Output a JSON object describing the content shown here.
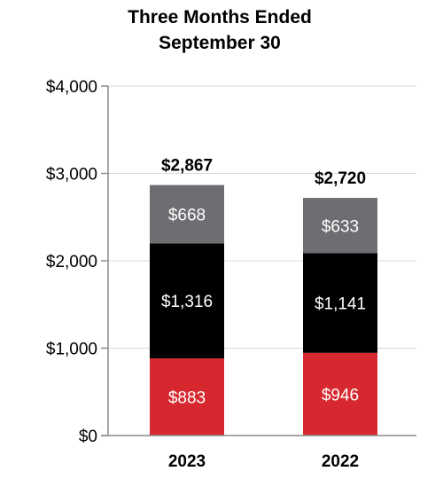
{
  "chart_data": {
    "type": "bar",
    "stacked": true,
    "title": "Three Months Ended",
    "subtitle": "September 30",
    "categories": [
      "2023",
      "2022"
    ],
    "series": [
      {
        "values": [
          883,
          946
        ],
        "labels": [
          "$883",
          "$946"
        ],
        "color": "#d7282f"
      },
      {
        "values": [
          1316,
          1141
        ],
        "labels": [
          "$1,316",
          "$1,141"
        ],
        "color": "#000000"
      },
      {
        "values": [
          668,
          633
        ],
        "labels": [
          "$668",
          "$633"
        ],
        "color": "#6d6e71"
      }
    ],
    "totals": [
      2867,
      2720
    ],
    "total_labels": [
      "$2,867",
      "$2,720"
    ],
    "yticks": [
      0,
      1000,
      2000,
      3000,
      4000
    ],
    "ytick_labels": [
      "$0",
      "$1,000",
      "$2,000",
      "$3,000",
      "$4,000"
    ],
    "ylim": [
      0,
      4000
    ],
    "grid": true,
    "legend": "none",
    "xlabel": "",
    "ylabel": ""
  }
}
